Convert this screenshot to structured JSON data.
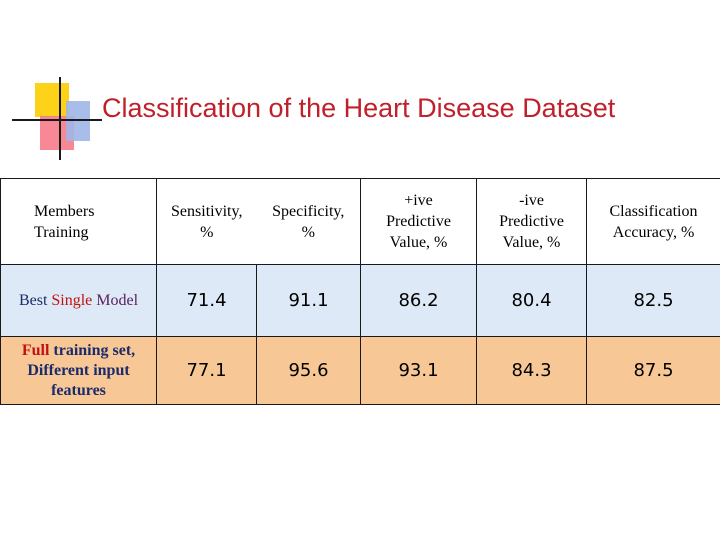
{
  "title": "Classification of the Heart Disease Dataset",
  "table": {
    "headers": {
      "members": [
        "Members",
        "Training"
      ],
      "sensitivity": [
        "Sensitivity,",
        "%"
      ],
      "specificity": [
        "Specificity,",
        "%"
      ],
      "ppv": [
        "+ive",
        "Predictive",
        "Value, %"
      ],
      "npv": [
        "-ive",
        "Predictive",
        "Value, %"
      ],
      "accuracy": [
        "Classification",
        "Accuracy, %"
      ]
    },
    "rows": [
      {
        "label_parts": [
          "Best",
          "Single",
          "Model"
        ],
        "values": [
          "71.4",
          "91.1",
          "86.2",
          "80.4",
          "82.5"
        ]
      },
      {
        "label_parts": [
          "Full",
          "training set,",
          "Different input",
          "features"
        ],
        "values": [
          "77.1",
          "95.6",
          "93.1",
          "84.3",
          "87.5"
        ]
      }
    ]
  }
}
